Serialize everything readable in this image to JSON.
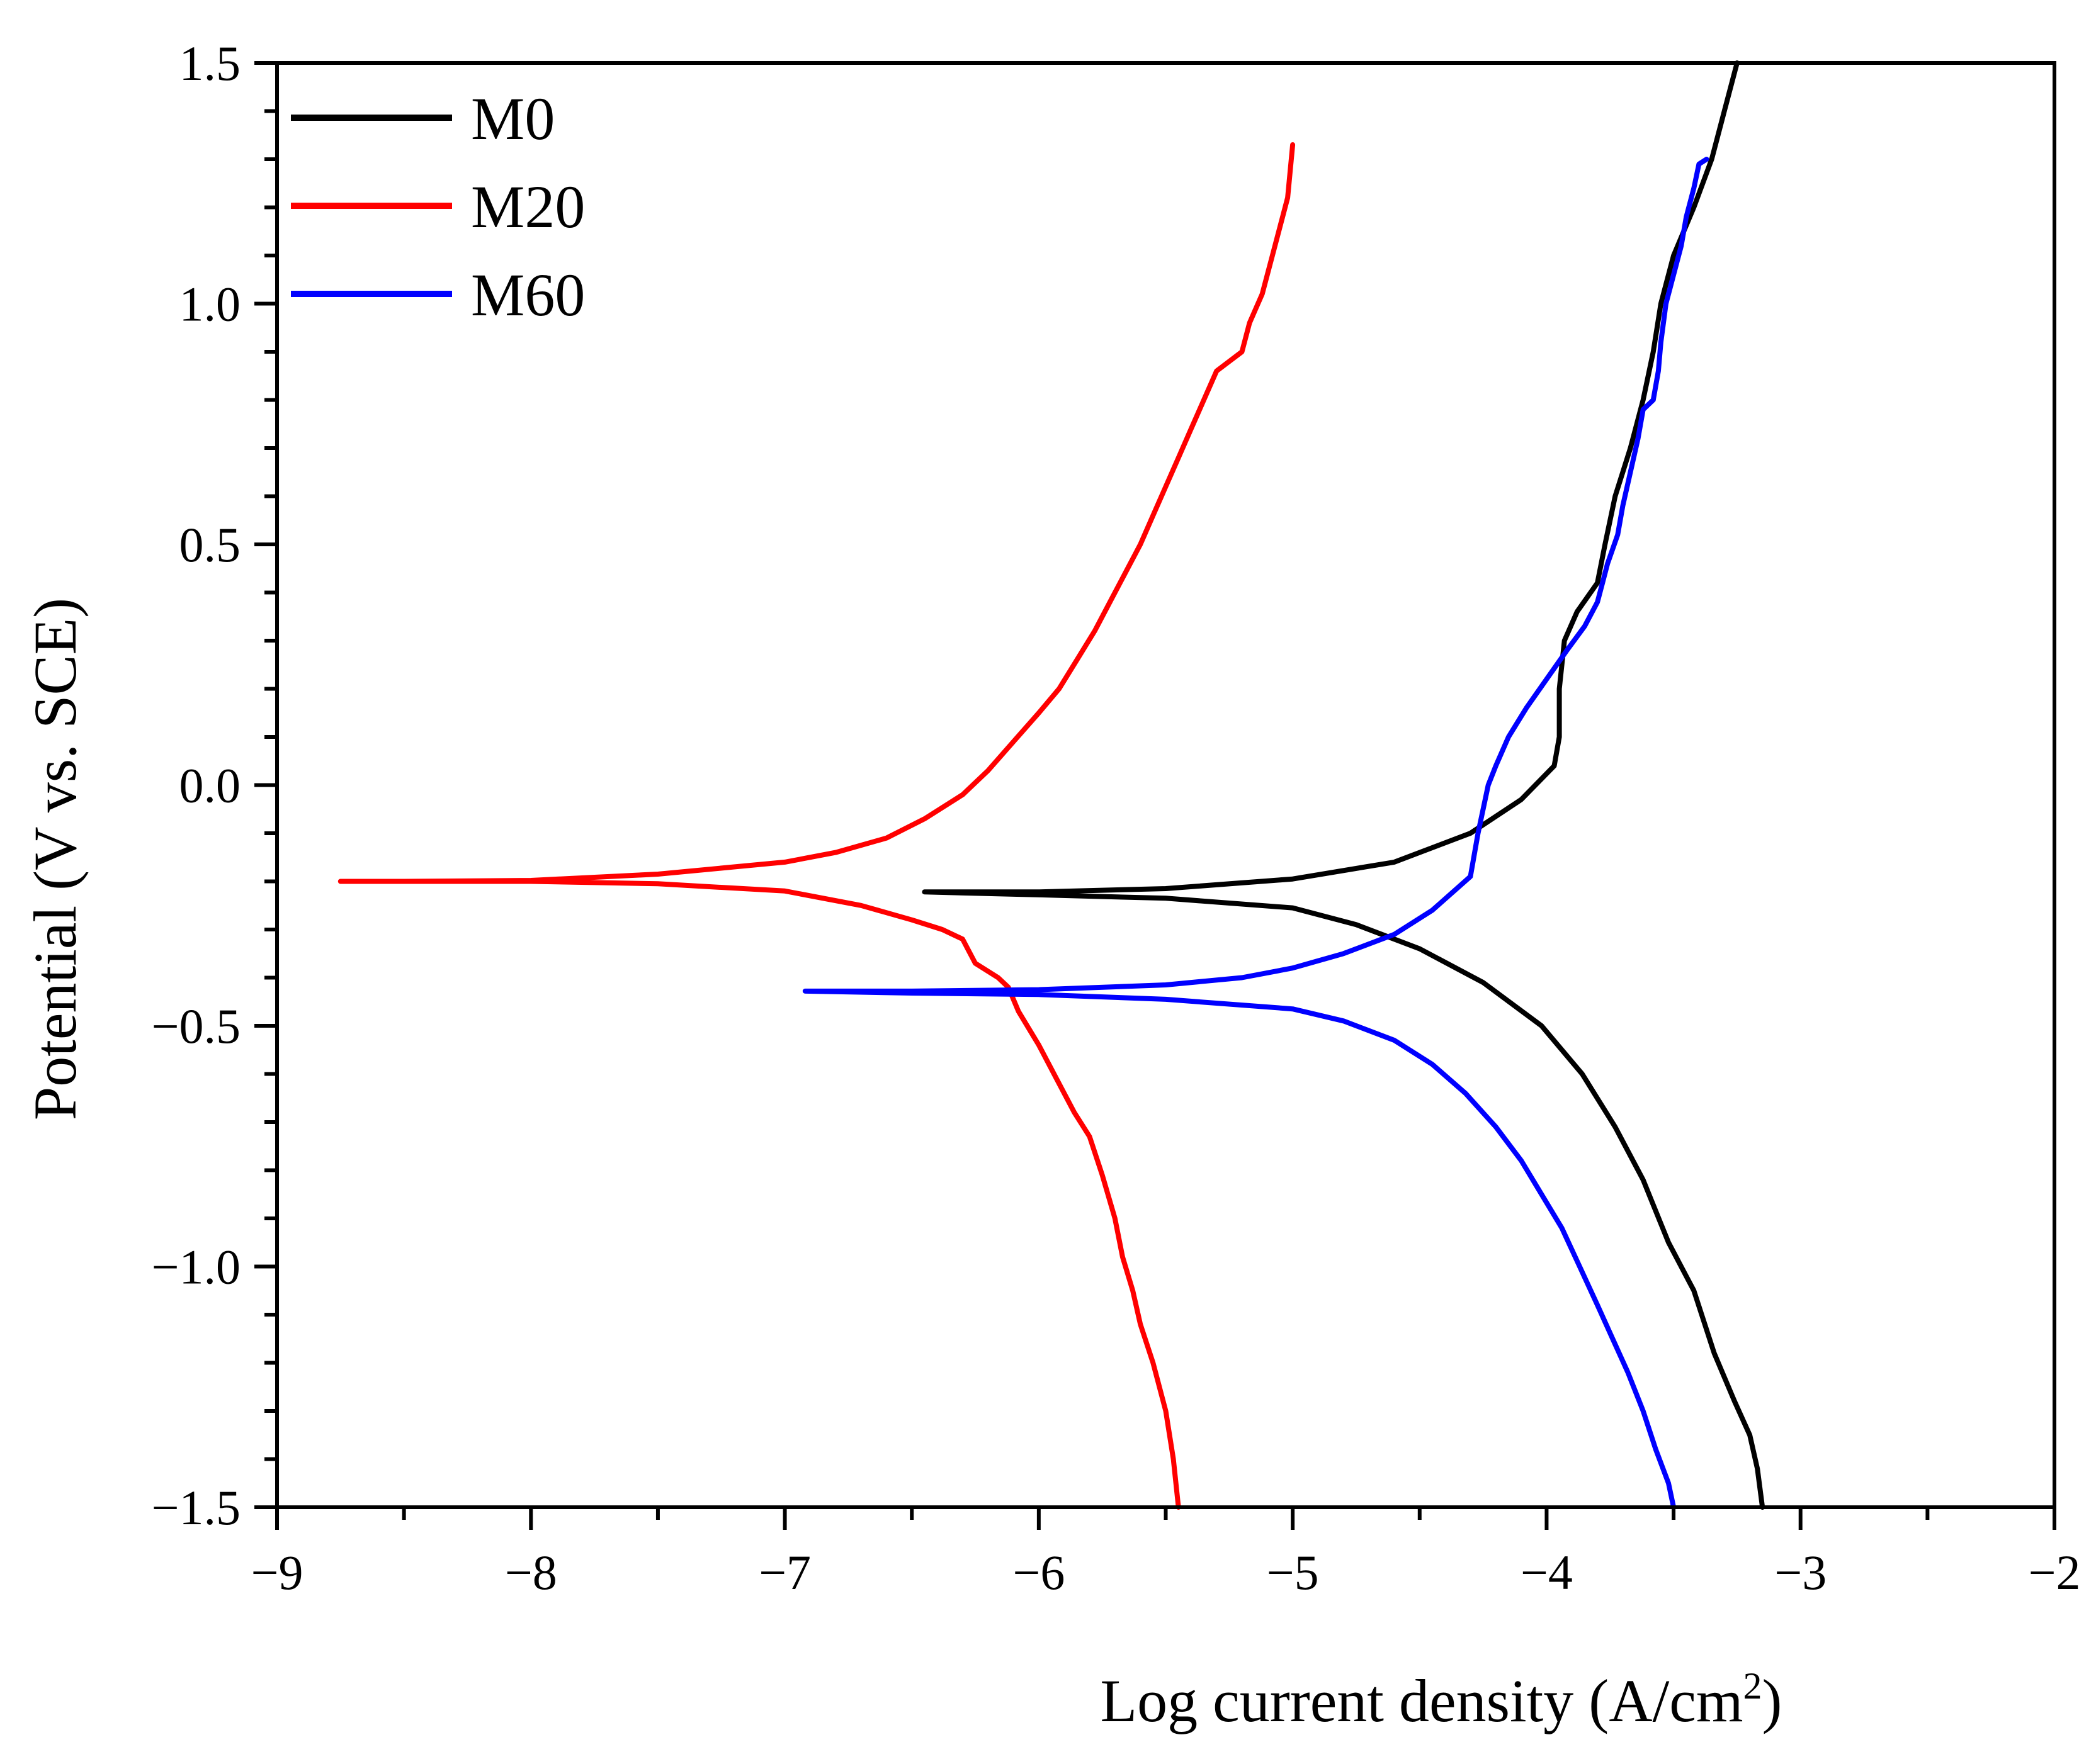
{
  "chart_data": {
    "type": "line",
    "title": "",
    "xlabel": "Log current density (A/cm",
    "xlabel_sup": "2",
    "xlabel_end": ")",
    "ylabel": "Potential (V vs. SCE)",
    "xlim": [
      -9,
      -2
    ],
    "ylim": [
      -1.5,
      1.5
    ],
    "x_ticks": [
      -9,
      -8,
      -7,
      -6,
      -5,
      -4,
      -3,
      -2
    ],
    "x_tick_labels": [
      "−9",
      "−8",
      "−7",
      "−6",
      "−5",
      "−4",
      "−3",
      "−2"
    ],
    "y_ticks": [
      -1.5,
      -1.0,
      -0.5,
      0.0,
      0.5,
      1.0,
      1.5
    ],
    "y_tick_labels": [
      "−1.5",
      "−1.0",
      "−0.5",
      "0.0",
      "0.5",
      "1.0",
      "1.5"
    ],
    "grid": false,
    "legend_position": "top-left",
    "series": [
      {
        "name": "M0",
        "color": "#000000",
        "points": [
          [
            -3.15,
            -1.5
          ],
          [
            -3.17,
            -1.42
          ],
          [
            -3.2,
            -1.35
          ],
          [
            -3.26,
            -1.28
          ],
          [
            -3.34,
            -1.18
          ],
          [
            -3.42,
            -1.05
          ],
          [
            -3.52,
            -0.95
          ],
          [
            -3.62,
            -0.82
          ],
          [
            -3.73,
            -0.71
          ],
          [
            -3.86,
            -0.6
          ],
          [
            -4.02,
            -0.5
          ],
          [
            -4.25,
            -0.41
          ],
          [
            -4.5,
            -0.34
          ],
          [
            -4.75,
            -0.29
          ],
          [
            -5.0,
            -0.255
          ],
          [
            -5.5,
            -0.235
          ],
          [
            -6.0,
            -0.228
          ],
          [
            -6.45,
            -0.222
          ],
          [
            -6.0,
            -0.222
          ],
          [
            -5.5,
            -0.215
          ],
          [
            -5.0,
            -0.195
          ],
          [
            -4.6,
            -0.16
          ],
          [
            -4.3,
            -0.1
          ],
          [
            -4.1,
            -0.03
          ],
          [
            -3.97,
            0.04
          ],
          [
            -3.95,
            0.1
          ],
          [
            -3.95,
            0.2
          ],
          [
            -3.93,
            0.3
          ],
          [
            -3.88,
            0.36
          ],
          [
            -3.8,
            0.42
          ],
          [
            -3.77,
            0.5
          ],
          [
            -3.73,
            0.6
          ],
          [
            -3.67,
            0.7
          ],
          [
            -3.62,
            0.8
          ],
          [
            -3.58,
            0.9
          ],
          [
            -3.55,
            1.0
          ],
          [
            -3.5,
            1.1
          ],
          [
            -3.42,
            1.2
          ],
          [
            -3.35,
            1.3
          ],
          [
            -3.3,
            1.4
          ],
          [
            -3.25,
            1.5
          ]
        ]
      },
      {
        "name": "M20",
        "color": "#ff0000",
        "points": [
          [
            -5.45,
            -1.5
          ],
          [
            -5.47,
            -1.4
          ],
          [
            -5.5,
            -1.3
          ],
          [
            -5.55,
            -1.2
          ],
          [
            -5.6,
            -1.12
          ],
          [
            -5.63,
            -1.05
          ],
          [
            -5.67,
            -0.98
          ],
          [
            -5.7,
            -0.9
          ],
          [
            -5.75,
            -0.81
          ],
          [
            -5.8,
            -0.73
          ],
          [
            -5.86,
            -0.68
          ],
          [
            -5.93,
            -0.61
          ],
          [
            -6.0,
            -0.54
          ],
          [
            -6.08,
            -0.47
          ],
          [
            -6.12,
            -0.42
          ],
          [
            -6.16,
            -0.4
          ],
          [
            -6.25,
            -0.37
          ],
          [
            -6.28,
            -0.34
          ],
          [
            -6.3,
            -0.32
          ],
          [
            -6.38,
            -0.3
          ],
          [
            -6.5,
            -0.28
          ],
          [
            -6.7,
            -0.25
          ],
          [
            -7.0,
            -0.22
          ],
          [
            -7.5,
            -0.205
          ],
          [
            -8.0,
            -0.2
          ],
          [
            -8.5,
            -0.2
          ],
          [
            -8.75,
            -0.2
          ],
          [
            -8.5,
            -0.2
          ],
          [
            -8.0,
            -0.198
          ],
          [
            -7.5,
            -0.185
          ],
          [
            -7.2,
            -0.17
          ],
          [
            -7.0,
            -0.16
          ],
          [
            -6.8,
            -0.14
          ],
          [
            -6.6,
            -0.11
          ],
          [
            -6.45,
            -0.07
          ],
          [
            -6.3,
            -0.02
          ],
          [
            -6.2,
            0.03
          ],
          [
            -6.1,
            0.09
          ],
          [
            -6.0,
            0.15
          ],
          [
            -5.92,
            0.2
          ],
          [
            -5.85,
            0.26
          ],
          [
            -5.78,
            0.32
          ],
          [
            -5.72,
            0.38
          ],
          [
            -5.66,
            0.44
          ],
          [
            -5.6,
            0.5
          ],
          [
            -5.55,
            0.56
          ],
          [
            -5.5,
            0.62
          ],
          [
            -5.45,
            0.68
          ],
          [
            -5.4,
            0.74
          ],
          [
            -5.35,
            0.8
          ],
          [
            -5.3,
            0.86
          ],
          [
            -5.25,
            0.88
          ],
          [
            -5.2,
            0.9
          ],
          [
            -5.17,
            0.96
          ],
          [
            -5.12,
            1.02
          ],
          [
            -5.08,
            1.1
          ],
          [
            -5.05,
            1.16
          ],
          [
            -5.02,
            1.22
          ],
          [
            -5.0,
            1.33
          ]
        ]
      },
      {
        "name": "M60",
        "color": "#0000ff",
        "points": [
          [
            -3.5,
            -1.5
          ],
          [
            -3.52,
            -1.45
          ],
          [
            -3.57,
            -1.38
          ],
          [
            -3.62,
            -1.3
          ],
          [
            -3.68,
            -1.22
          ],
          [
            -3.74,
            -1.15
          ],
          [
            -3.8,
            -1.08
          ],
          [
            -3.87,
            -1.0
          ],
          [
            -3.94,
            -0.92
          ],
          [
            -4.02,
            -0.85
          ],
          [
            -4.1,
            -0.78
          ],
          [
            -4.2,
            -0.71
          ],
          [
            -4.32,
            -0.64
          ],
          [
            -4.45,
            -0.58
          ],
          [
            -4.6,
            -0.53
          ],
          [
            -4.8,
            -0.49
          ],
          [
            -5.0,
            -0.465
          ],
          [
            -5.5,
            -0.445
          ],
          [
            -6.0,
            -0.435
          ],
          [
            -6.5,
            -0.432
          ],
          [
            -6.92,
            -0.428
          ],
          [
            -6.5,
            -0.428
          ],
          [
            -6.0,
            -0.425
          ],
          [
            -5.5,
            -0.415
          ],
          [
            -5.2,
            -0.4
          ],
          [
            -5.0,
            -0.38
          ],
          [
            -4.8,
            -0.35
          ],
          [
            -4.6,
            -0.31
          ],
          [
            -4.45,
            -0.26
          ],
          [
            -4.3,
            -0.19
          ],
          [
            -4.27,
            -0.1
          ],
          [
            -4.25,
            -0.05
          ],
          [
            -4.23,
            0.0
          ],
          [
            -4.2,
            0.04
          ],
          [
            -4.15,
            0.1
          ],
          [
            -4.08,
            0.16
          ],
          [
            -4.0,
            0.22
          ],
          [
            -3.92,
            0.28
          ],
          [
            -3.85,
            0.33
          ],
          [
            -3.8,
            0.38
          ],
          [
            -3.78,
            0.42
          ],
          [
            -3.76,
            0.46
          ],
          [
            -3.72,
            0.52
          ],
          [
            -3.7,
            0.58
          ],
          [
            -3.67,
            0.65
          ],
          [
            -3.64,
            0.72
          ],
          [
            -3.62,
            0.78
          ],
          [
            -3.58,
            0.8
          ],
          [
            -3.56,
            0.86
          ],
          [
            -3.55,
            0.92
          ],
          [
            -3.53,
            1.0
          ],
          [
            -3.5,
            1.06
          ],
          [
            -3.47,
            1.12
          ],
          [
            -3.45,
            1.18
          ],
          [
            -3.42,
            1.24
          ],
          [
            -3.4,
            1.29
          ],
          [
            -3.37,
            1.3
          ]
        ]
      }
    ]
  }
}
